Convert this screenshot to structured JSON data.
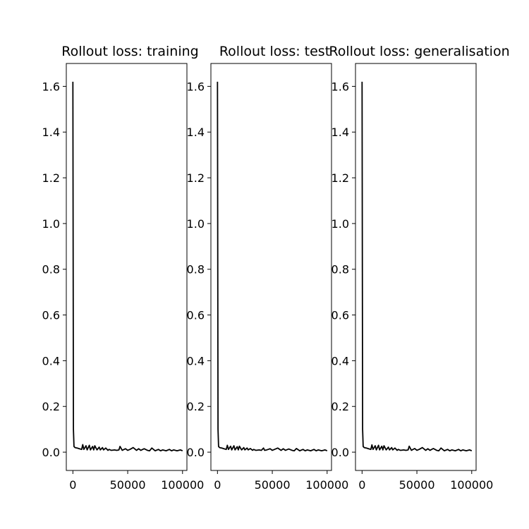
{
  "chart_data": [
    {
      "type": "line",
      "title": "Rollout loss: training",
      "xlabel": "",
      "ylabel": "",
      "xlim": [
        -6000,
        104000
      ],
      "ylim": [
        -0.08,
        1.7
      ],
      "xticks": [
        0,
        50000,
        100000
      ],
      "xtick_labels": [
        "0",
        "50000",
        "100000"
      ],
      "yticks": [
        0.0,
        0.2,
        0.4,
        0.6,
        0.8,
        1.0,
        1.2,
        1.4,
        1.6
      ],
      "ytick_labels": [
        "0.0",
        "0.2",
        "0.4",
        "0.6",
        "0.8",
        "1.0",
        "1.2",
        "1.4",
        "1.6"
      ],
      "grid": false,
      "series": [
        {
          "color": "#000000",
          "x": [
            0,
            500,
            1000,
            2000,
            4000,
            6000,
            8000,
            9000,
            10000,
            12000,
            13000,
            15000,
            16000,
            18000,
            19000,
            20000,
            22000,
            24000,
            25000,
            27000,
            28000,
            30000,
            32000,
            33000,
            35000,
            38000,
            40000,
            42000,
            43000,
            45000,
            48000,
            50000,
            52000,
            55000,
            58000,
            60000,
            62000,
            65000,
            68000,
            70000,
            72000,
            75000,
            78000,
            80000,
            82000,
            85000,
            88000,
            90000,
            92000,
            95000,
            98000,
            100000
          ],
          "y": [
            1.62,
            0.1,
            0.025,
            0.02,
            0.018,
            0.015,
            0.012,
            0.033,
            0.012,
            0.028,
            0.01,
            0.03,
            0.01,
            0.025,
            0.01,
            0.028,
            0.01,
            0.022,
            0.01,
            0.02,
            0.01,
            0.018,
            0.008,
            0.012,
            0.008,
            0.01,
            0.008,
            0.01,
            0.025,
            0.008,
            0.015,
            0.008,
            0.012,
            0.02,
            0.008,
            0.015,
            0.008,
            0.015,
            0.008,
            0.006,
            0.018,
            0.006,
            0.012,
            0.006,
            0.01,
            0.006,
            0.012,
            0.006,
            0.01,
            0.006,
            0.01,
            0.006
          ]
        }
      ]
    },
    {
      "type": "line",
      "title": "Rollout loss: test",
      "xlabel": "",
      "ylabel": "",
      "xlim": [
        -6000,
        104000
      ],
      "ylim": [
        -0.08,
        1.7
      ],
      "xticks": [
        0,
        50000,
        100000
      ],
      "xtick_labels": [
        "0",
        "50000",
        "100000"
      ],
      "yticks": [
        0.0,
        0.2,
        0.4,
        0.6,
        0.8,
        1.0,
        1.2,
        1.4,
        1.6
      ],
      "ytick_labels": [
        "0.0",
        "0.2",
        "0.4",
        "0.6",
        "0.8",
        "1.0",
        "1.2",
        "1.4",
        "1.6"
      ],
      "grid": false,
      "series": [
        {
          "color": "#000000",
          "x": [
            0,
            500,
            1000,
            2000,
            4000,
            6000,
            8000,
            9000,
            10000,
            12000,
            13000,
            15000,
            16000,
            18000,
            19000,
            20000,
            22000,
            24000,
            25000,
            27000,
            28000,
            30000,
            32000,
            33000,
            35000,
            38000,
            40000,
            42000,
            43000,
            45000,
            48000,
            50000,
            52000,
            55000,
            58000,
            60000,
            62000,
            65000,
            68000,
            70000,
            72000,
            75000,
            78000,
            80000,
            82000,
            85000,
            88000,
            90000,
            92000,
            95000,
            98000,
            100000
          ],
          "y": [
            1.62,
            0.1,
            0.025,
            0.02,
            0.018,
            0.015,
            0.012,
            0.03,
            0.012,
            0.026,
            0.01,
            0.028,
            0.01,
            0.024,
            0.01,
            0.026,
            0.01,
            0.02,
            0.01,
            0.018,
            0.01,
            0.016,
            0.008,
            0.012,
            0.008,
            0.01,
            0.008,
            0.018,
            0.008,
            0.01,
            0.015,
            0.008,
            0.012,
            0.018,
            0.008,
            0.015,
            0.008,
            0.014,
            0.008,
            0.006,
            0.016,
            0.006,
            0.012,
            0.006,
            0.01,
            0.006,
            0.012,
            0.006,
            0.01,
            0.006,
            0.01,
            0.006
          ]
        }
      ]
    },
    {
      "type": "line",
      "title": "Rollout loss: generalisation",
      "xlabel": "",
      "ylabel": "",
      "xlim": [
        -6000,
        104000
      ],
      "ylim": [
        -0.08,
        1.7
      ],
      "xticks": [
        0,
        50000,
        100000
      ],
      "xtick_labels": [
        "0",
        "50000",
        "100000"
      ],
      "yticks": [
        0.0,
        0.2,
        0.4,
        0.6,
        0.8,
        1.0,
        1.2,
        1.4,
        1.6
      ],
      "ytick_labels": [
        "0.0",
        "0.2",
        "0.4",
        "0.6",
        "0.8",
        "1.0",
        "1.2",
        "1.4",
        "1.6"
      ],
      "grid": false,
      "series": [
        {
          "color": "#000000",
          "x": [
            0,
            500,
            1000,
            2000,
            4000,
            6000,
            8000,
            9000,
            10000,
            12000,
            13000,
            15000,
            16000,
            18000,
            19000,
            20000,
            22000,
            24000,
            25000,
            27000,
            28000,
            30000,
            32000,
            33000,
            35000,
            38000,
            40000,
            42000,
            43000,
            45000,
            48000,
            50000,
            52000,
            55000,
            58000,
            60000,
            62000,
            65000,
            68000,
            70000,
            72000,
            75000,
            78000,
            80000,
            82000,
            85000,
            88000,
            90000,
            92000,
            95000,
            98000,
            100000
          ],
          "y": [
            1.62,
            0.1,
            0.025,
            0.02,
            0.018,
            0.015,
            0.012,
            0.032,
            0.012,
            0.028,
            0.01,
            0.03,
            0.01,
            0.026,
            0.01,
            0.028,
            0.01,
            0.022,
            0.01,
            0.02,
            0.01,
            0.018,
            0.008,
            0.012,
            0.008,
            0.01,
            0.008,
            0.01,
            0.026,
            0.008,
            0.016,
            0.008,
            0.012,
            0.02,
            0.008,
            0.015,
            0.008,
            0.016,
            0.008,
            0.006,
            0.018,
            0.006,
            0.012,
            0.006,
            0.01,
            0.006,
            0.012,
            0.006,
            0.01,
            0.006,
            0.01,
            0.006
          ]
        }
      ]
    }
  ]
}
